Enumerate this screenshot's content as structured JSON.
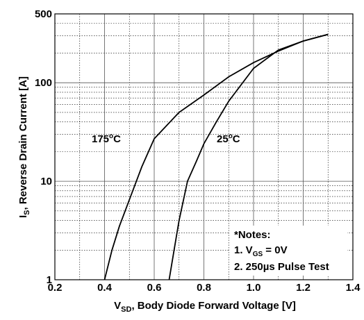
{
  "chart_data": {
    "type": "line",
    "x_label": {
      "main": "V",
      "sub": "SD",
      "rest": ", Body Diode Forward Voltage [V]"
    },
    "y_label": {
      "main": "I",
      "sub": "S",
      "rest": ", Reverse Drain Current [A]"
    },
    "xlim": [
      0.2,
      1.4
    ],
    "xticks": [
      0.2,
      0.4,
      0.6,
      0.8,
      1.0,
      1.2,
      1.4
    ],
    "x_minor_ticks": [
      0.3,
      0.5,
      0.7,
      0.9,
      1.1,
      1.3
    ],
    "ylim": [
      1,
      500
    ],
    "yticks": [
      1,
      10,
      100,
      500
    ],
    "y_minor_ticks": [
      2,
      3,
      4,
      5,
      6,
      7,
      8,
      9,
      20,
      30,
      40,
      50,
      60,
      70,
      80,
      90,
      200,
      300,
      400
    ],
    "log_y": true,
    "grid": true,
    "series": [
      {
        "name": {
          "num": "175",
          "sup": "o",
          "unit": "C"
        },
        "color": "#000000",
        "x": [
          0.4,
          0.43,
          0.46,
          0.5,
          0.55,
          0.6,
          0.7,
          0.8,
          0.9,
          1.0,
          1.1,
          1.2,
          1.3
        ],
        "values": [
          1,
          2,
          3.5,
          6.5,
          14,
          27,
          50,
          75,
          115,
          160,
          210,
          265,
          310
        ]
      },
      {
        "name": {
          "num": "25",
          "sup": "o",
          "unit": "C"
        },
        "color": "#000000",
        "x": [
          0.66,
          0.68,
          0.7,
          0.734,
          0.77,
          0.8,
          0.85,
          0.9,
          1.0,
          1.1,
          1.2,
          1.3
        ],
        "values": [
          1,
          2,
          4,
          10,
          16,
          24,
          40,
          65,
          140,
          215,
          265,
          310
        ]
      }
    ],
    "notes": {
      "title": "*Notes:",
      "line1": {
        "pre": "1. V",
        "sub": "GS",
        "post": " = 0V"
      },
      "line2": "2. 250µs Pulse Test"
    }
  }
}
